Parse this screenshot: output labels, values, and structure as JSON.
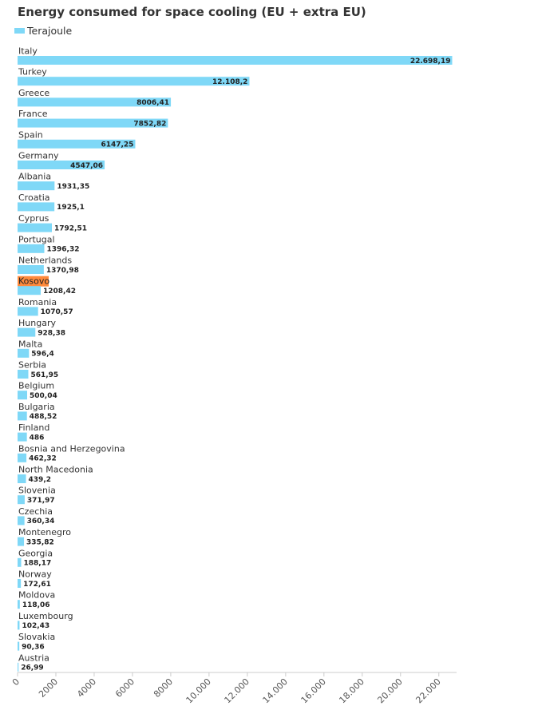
{
  "colors": {
    "bar": "#7fd8f7",
    "highlight": "#ff8a3c",
    "label": "#333333",
    "axis": "#cccccc"
  },
  "chart_data": {
    "type": "bar",
    "orientation": "horizontal",
    "title": "Energy consumed for space cooling (EU + extra EU)",
    "legend": {
      "placement": "top-left",
      "entries": [
        "Terajoule"
      ]
    },
    "highlight_category": "Kosovo",
    "categories": [
      "Italy",
      "Turkey",
      "Greece",
      "France",
      "Spain",
      "Germany",
      "Albania",
      "Croatia",
      "Cyprus",
      "Portugal",
      "Netherlands",
      "Kosovo",
      "Romania",
      "Hungary",
      "Malta",
      "Serbia",
      "Belgium",
      "Bulgaria",
      "Finland",
      "Bosnia and Herzegovina",
      "North Macedonia",
      "Slovenia",
      "Czechia",
      "Montenegro",
      "Georgia",
      "Norway",
      "Moldova",
      "Luxembourg",
      "Slovakia",
      "Austria"
    ],
    "series": [
      {
        "name": "Terajoule",
        "values": [
          22698.19,
          12108.2,
          8006.41,
          7852.82,
          6147.25,
          4547.06,
          1931.35,
          1925.1,
          1792.51,
          1396.32,
          1370.98,
          1208.42,
          1070.57,
          928.38,
          596.4,
          561.95,
          500.04,
          488.52,
          486,
          462.32,
          439.2,
          371.97,
          360.34,
          335.82,
          188.17,
          172.61,
          118.06,
          102.43,
          90.36,
          26.99
        ],
        "labels": [
          "22.698,19",
          "12.108,2",
          "8006,41",
          "7852,82",
          "6147,25",
          "4547,06",
          "1931,35",
          "1925,1",
          "1792,51",
          "1396,32",
          "1370,98",
          "1208,42",
          "1070,57",
          "928,38",
          "596,4",
          "561,95",
          "500,04",
          "488,52",
          "486",
          "462,32",
          "439,2",
          "371,97",
          "360,34",
          "335,82",
          "188,17",
          "172,61",
          "118,06",
          "102,43",
          "90,36",
          "26,99"
        ]
      }
    ],
    "xlim": [
      0,
      23000
    ],
    "xticks": [
      0,
      2000,
      4000,
      6000,
      8000,
      10000,
      12000,
      14000,
      16000,
      18000,
      20000,
      22000
    ],
    "xtick_labels": [
      "0",
      "2000",
      "4000",
      "6000",
      "8000",
      "10.000",
      "12.000",
      "14.000",
      "16.000",
      "18.000",
      "20.000",
      "22.000"
    ],
    "grid": false,
    "xlabel": "",
    "ylabel": ""
  }
}
